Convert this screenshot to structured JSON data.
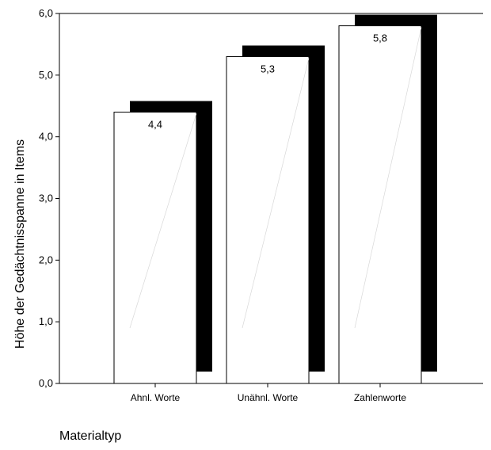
{
  "chart_data": {
    "type": "bar",
    "categories": [
      "Ahnl. Worte",
      "Unähnl. Worte",
      "Zahlenworte"
    ],
    "values": [
      4.4,
      5.3,
      5.8
    ],
    "data_labels": [
      "4,4",
      "5,3",
      "5,8"
    ],
    "title": "",
    "xlabel": "Materialtyp",
    "ylabel": "Höhe der Gedächtnisspanne in Items",
    "ylim": [
      0,
      6
    ],
    "yticks": [
      "0,0",
      "1,0",
      "2,0",
      "3,0",
      "4,0",
      "5,0",
      "6,0"
    ],
    "grid": false,
    "bar_style": "3d-shadow",
    "colors": {
      "bar_fill": "#ffffff",
      "bar_shadow": "#000000",
      "axis": "#000000"
    }
  }
}
